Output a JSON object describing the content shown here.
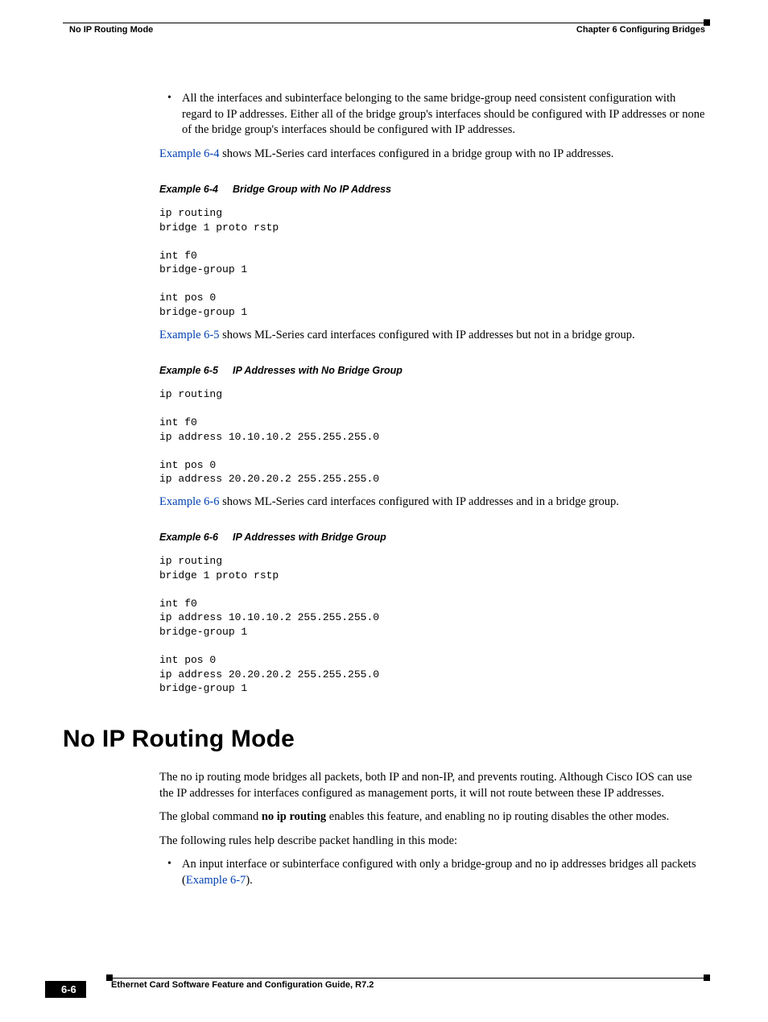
{
  "header": {
    "section": "No IP Routing Mode",
    "chapter": "Chapter 6  Configuring Bridges"
  },
  "bullet1": "All the interfaces and subinterface belonging to the same bridge-group need consistent configuration with regard to IP addresses. Either all of the bridge group's interfaces should be configured with IP addresses or none of the bridge group's interfaces should be configured with IP addresses.",
  "p1_link": "Example 6-4",
  "p1_rest": " shows ML-Series card interfaces configured in a bridge group with no IP addresses.",
  "ex64_label": "Example 6-4",
  "ex64_title": "Bridge Group with No IP Address",
  "code64": "ip routing\nbridge 1 proto rstp\n\nint f0\nbridge-group 1\n\nint pos 0\nbridge-group 1",
  "p2_link": "Example 6-5",
  "p2_rest": " shows ML-Series card interfaces configured with IP addresses but not in a bridge group.",
  "ex65_label": "Example 6-5",
  "ex65_title": "IP Addresses with No Bridge Group",
  "code65": "ip routing\n\nint f0\nip address 10.10.10.2 255.255.255.0\n\nint pos 0\nip address 20.20.20.2 255.255.255.0",
  "p3_link": "Example 6-6",
  "p3_rest": " shows ML-Series card interfaces configured with IP addresses and in a bridge group.",
  "ex66_label": "Example 6-6",
  "ex66_title": "IP Addresses with Bridge Group",
  "code66": "ip routing\nbridge 1 proto rstp\n\nint f0\nip address 10.10.10.2 255.255.255.0\nbridge-group 1\n\nint pos 0\nip address 20.20.20.2 255.255.255.0\nbridge-group 1",
  "h1": "No IP Routing Mode",
  "p4": "The no ip routing mode bridges all packets, both IP and non-IP, and prevents routing. Although Cisco IOS can use the IP addresses for interfaces configured as management ports, it will not route between these IP addresses.",
  "p5_a": "The global command ",
  "p5_cmd": "no ip routing",
  "p5_b": " enables this feature, and enabling no ip routing disables the other modes.",
  "p6": "The following rules help describe packet handling in this mode:",
  "bullet2_a": "An input interface or subinterface configured with only a bridge-group and no ip addresses bridges all packets (",
  "bullet2_link": "Example 6-7",
  "bullet2_b": ").",
  "footer": {
    "guide": "Ethernet Card Software Feature and Configuration Guide, R7.2",
    "page": "6-6"
  },
  "colors": {
    "link": "#0040b0",
    "text": "#000000",
    "bg": "#ffffff"
  }
}
